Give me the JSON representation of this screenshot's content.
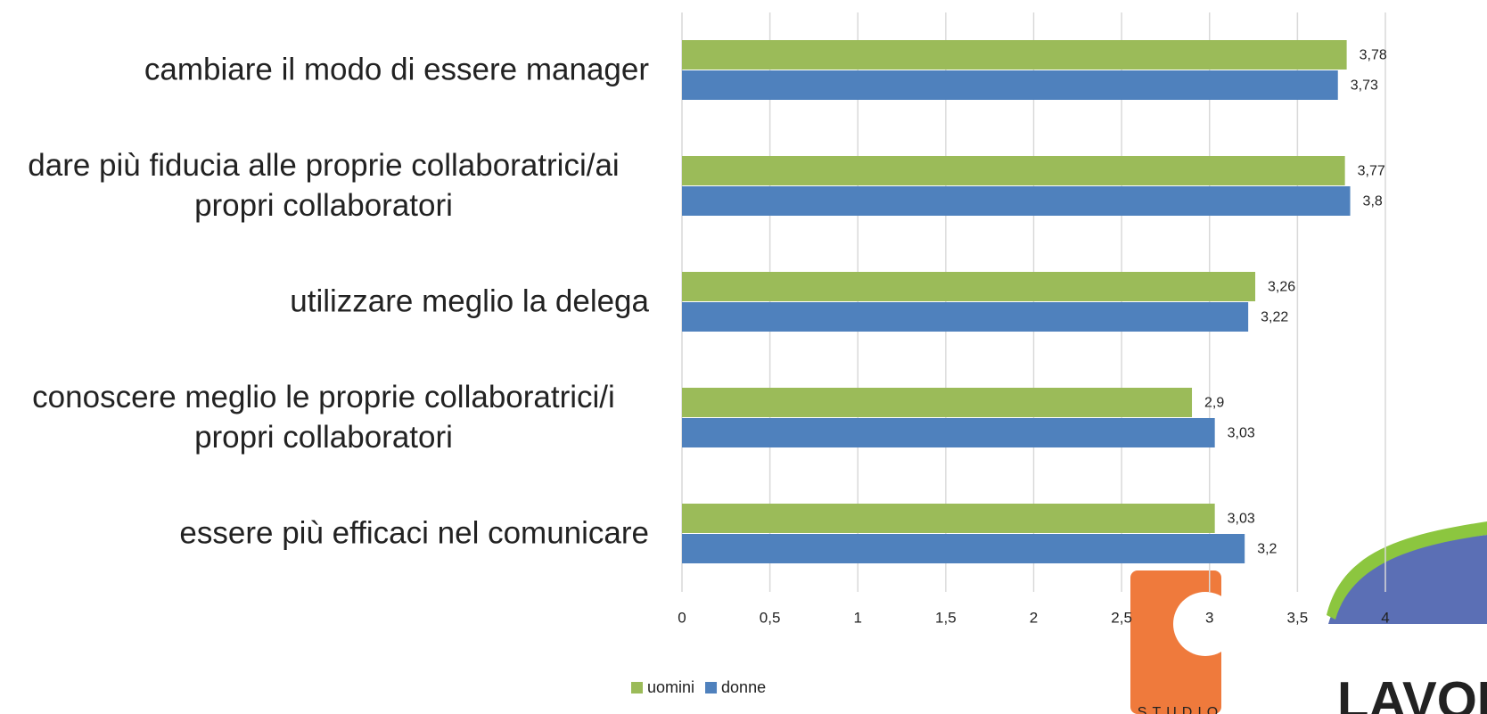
{
  "chart_data": {
    "type": "bar",
    "orientation": "horizontal",
    "categories": [
      "cambiare il modo di essere manager",
      "dare più fiducia alle proprie collaboratrici/ai propri collaboratori",
      "utilizzare meglio la delega",
      "conoscere meglio le proprie collaboratrici/i propri collaboratori",
      "essere più efficaci nel comunicare"
    ],
    "series": [
      {
        "name": "uomini",
        "color": "#9bbb59",
        "values": [
          3.78,
          3.77,
          3.26,
          2.9,
          3.03
        ],
        "value_labels": [
          "3,78",
          "3,77",
          "3,26",
          "2,9",
          "3,03"
        ]
      },
      {
        "name": "donne",
        "color": "#4f81bd",
        "values": [
          3.73,
          3.8,
          3.22,
          3.03,
          3.2
        ],
        "value_labels": [
          "3,73",
          "3,8",
          "3,22",
          "3,03",
          "3,2"
        ]
      }
    ],
    "xlim": [
      0,
      4
    ],
    "xticks": [
      0,
      {
        "value": 0.5,
        "label": "0,5"
      },
      1,
      {
        "value": 1.5,
        "label": "1,5"
      },
      2,
      {
        "value": 2.5,
        "label": "2,5"
      },
      3,
      {
        "value": 3.5,
        "label": "3,5"
      },
      4
    ],
    "grid": true,
    "legend": "bottom",
    "logos": [
      "STUDIO",
      "LAVORO"
    ]
  }
}
